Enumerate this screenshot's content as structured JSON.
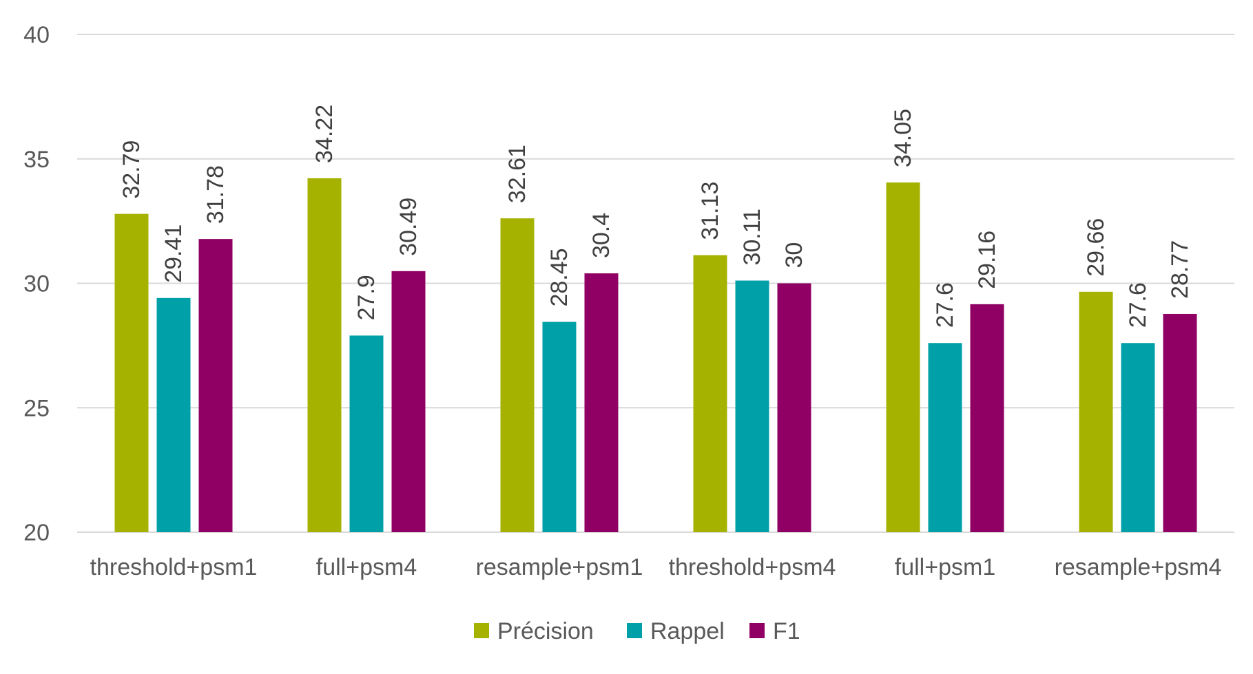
{
  "chart_data": {
    "type": "bar",
    "categories": [
      "threshold+psm1",
      "full+psm4",
      "resample+psm1",
      "threshold+psm4",
      "full+psm1",
      "resample+psm4"
    ],
    "series": [
      {
        "name": "Précision",
        "color": "#a5b200",
        "values": [
          32.79,
          34.22,
          32.61,
          31.13,
          34.05,
          29.66
        ],
        "labels": [
          "32.79",
          "34.22",
          "32.61",
          "31.13",
          "34.05",
          "29.66"
        ]
      },
      {
        "name": "Rappel",
        "color": "#00a0a8",
        "values": [
          29.41,
          27.9,
          28.45,
          30.11,
          27.6,
          27.6
        ],
        "labels": [
          "29.41",
          "27.9",
          "28.45",
          "30.11",
          "27.6",
          "27.6"
        ]
      },
      {
        "name": "F1",
        "color": "#900064",
        "values": [
          31.78,
          30.49,
          30.4,
          30,
          29.16,
          28.77
        ],
        "labels": [
          "31.78",
          "30.49",
          "30.4",
          "30",
          "29.16",
          "28.77"
        ]
      }
    ],
    "ylim": [
      20,
      40
    ],
    "yticks": [
      20,
      25,
      30,
      35,
      40
    ],
    "ytick_labels": [
      "20",
      "25",
      "30",
      "35",
      "40"
    ],
    "grid": true,
    "legend_position": "bottom",
    "title": "",
    "xlabel": "",
    "ylabel": ""
  }
}
